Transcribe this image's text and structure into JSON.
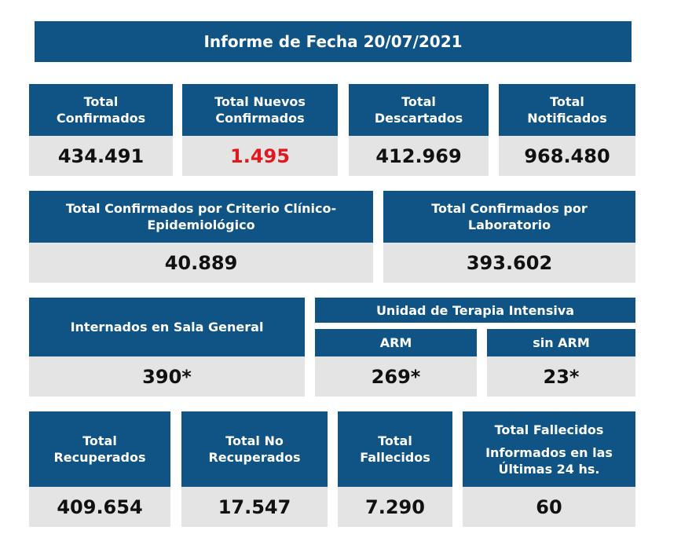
{
  "report": {
    "title": "Informe de Fecha 20/07/2021"
  },
  "row1": [
    {
      "label": "Total\nConfirmados",
      "value": "434.491"
    },
    {
      "label": "Total Nuevos\nConfirmados",
      "value": "1.495"
    },
    {
      "label": "Total\nDescartados",
      "value": "412.969"
    },
    {
      "label": "Total\nNotificados",
      "value": "968.480"
    }
  ],
  "row2": [
    {
      "label": "Total Confirmados por Criterio Clínico-\nEpidemiológico",
      "value": "40.889"
    },
    {
      "label": "Total Confirmados por\nLaboratorio",
      "value": "393.602"
    }
  ],
  "row3": {
    "sala_general": {
      "label": "Internados en Sala General",
      "value": "390*"
    },
    "uti": {
      "label": "Unidad de Terapia Intensiva",
      "arm": {
        "label": "ARM",
        "value": "269*"
      },
      "sin_arm": {
        "label": "sin ARM",
        "value": "23*"
      }
    }
  },
  "row4": [
    {
      "label": "Total\nRecuperados",
      "value": "409.654"
    },
    {
      "label": "Total No\nRecuperados",
      "value": "17.547"
    },
    {
      "label": "Total\nFallecidos",
      "value": "7.290"
    },
    {
      "label_line1": "Total Fallecidos",
      "label_line2": "Informados en las\nÚltimas 24 hs.",
      "value": "60"
    }
  ],
  "colors": {
    "header_bg": "#0f5484",
    "value_bg": "#e4e4e4",
    "highlight": "#e0191f"
  }
}
